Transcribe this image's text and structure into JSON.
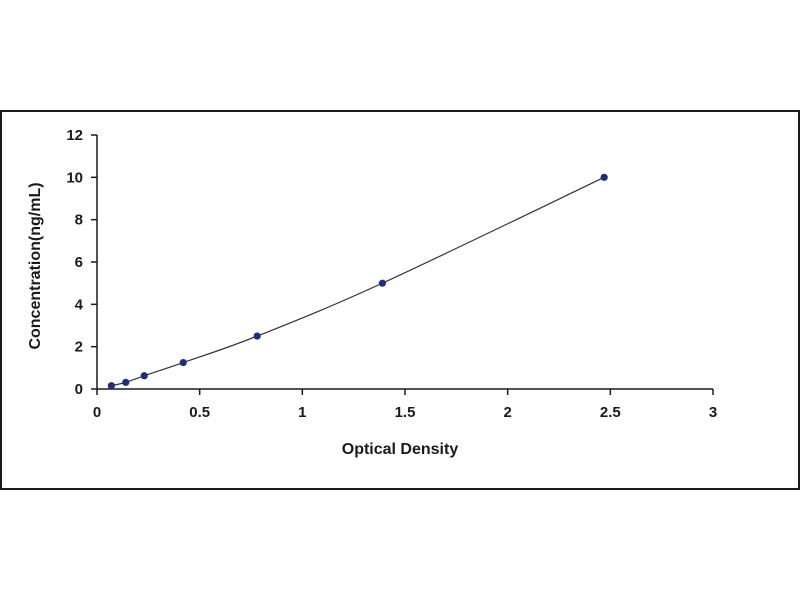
{
  "chart_data": {
    "type": "scatter",
    "xlabel": "Optical Density",
    "ylabel": "Concentration(ng/mL)",
    "xlim": [
      0,
      3
    ],
    "ylim": [
      0,
      12
    ],
    "x_ticks": [
      "0",
      "0.5",
      "1",
      "1.5",
      "2",
      "2.5",
      "3"
    ],
    "y_ticks": [
      "0",
      "2",
      "4",
      "6",
      "8",
      "10",
      "12"
    ],
    "grid": false,
    "legend": "none",
    "fit_line": "smooth curve through points",
    "series": [
      {
        "x": [
          0.07,
          0.14,
          0.23,
          0.42,
          0.78,
          1.39,
          2.47
        ],
        "y": [
          0.156,
          0.313,
          0.625,
          1.25,
          2.5,
          5,
          10
        ]
      }
    ],
    "colors": {
      "point": "#1f2d7a",
      "line": "#333333",
      "axis": "#1a1a1a"
    }
  }
}
